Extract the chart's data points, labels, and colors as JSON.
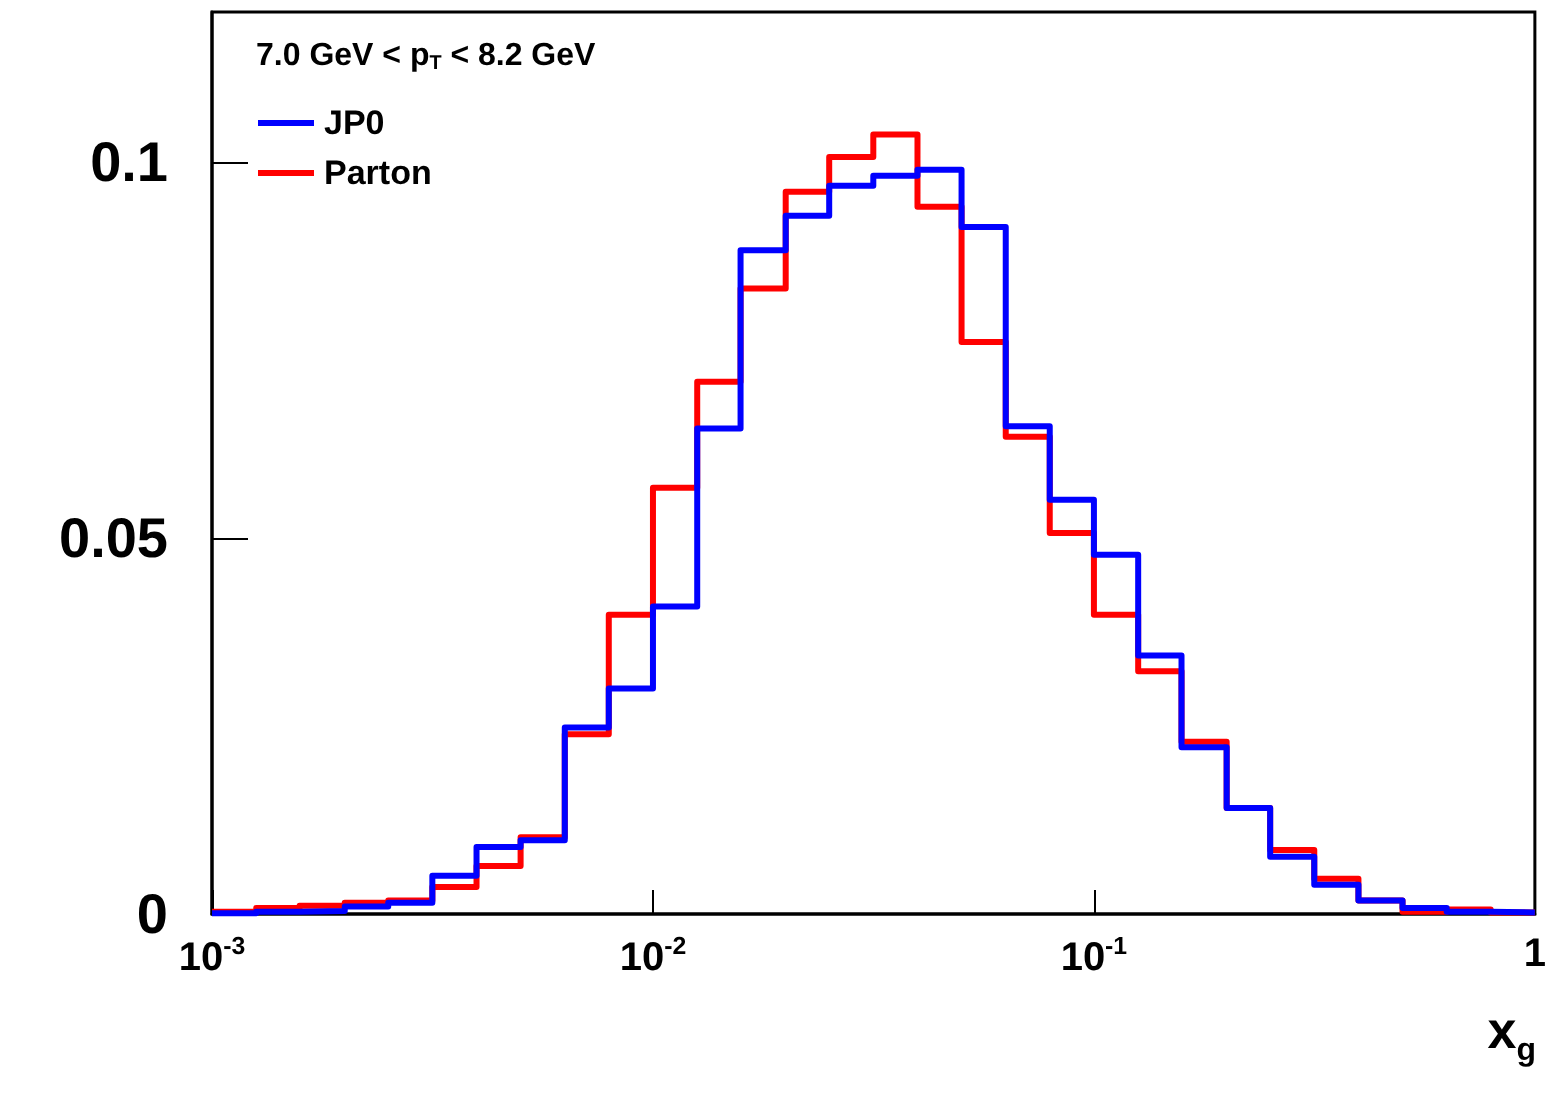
{
  "chart_data": {
    "type": "histogram",
    "xlabel": "x$_{g}$",
    "legend_title": "7.0 GeV < p$_{T}$ < 8.2 GeV",
    "log": "x",
    "legend": "top left",
    "bins": [
      0.001,
      0.00126,
      0.00158,
      0.002,
      0.00251,
      0.00316,
      0.00398,
      0.00501,
      0.00631,
      0.00794,
      0.01,
      0.0126,
      0.0158,
      0.02,
      0.0251,
      0.0316,
      0.0398,
      0.0501,
      0.0631,
      0.0794,
      0.1,
      0.126,
      0.158,
      0.2,
      0.251,
      0.316,
      0.398,
      0.501,
      0.631,
      0.794,
      1
    ],
    "series": [
      {
        "name": "JP0",
        "color": "#0000ff",
        "values": [
          0.0001,
          0.0003,
          0.0004,
          0.001,
          0.0015,
          0.0051,
          0.0089,
          0.0098,
          0.0248,
          0.03,
          0.0409,
          0.0646,
          0.0883,
          0.0929,
          0.0969,
          0.0982,
          0.099,
          0.0914,
          0.0649,
          0.0551,
          0.0478,
          0.0344,
          0.0222,
          0.0141,
          0.0076,
          0.0039,
          0.0018,
          0.0008,
          0.0003,
          0.0002
        ]
      },
      {
        "name": "Parton",
        "color": "#ff0000",
        "values": [
          0.0003,
          0.0008,
          0.0011,
          0.0015,
          0.0018,
          0.0036,
          0.0064,
          0.0102,
          0.0239,
          0.0398,
          0.0567,
          0.0708,
          0.0832,
          0.0961,
          0.1007,
          0.1037,
          0.0941,
          0.0761,
          0.0635,
          0.0507,
          0.0398,
          0.0323,
          0.0229,
          0.0141,
          0.0085,
          0.0047,
          0.0018,
          0.0003,
          0.0006,
          0.0002
        ]
      }
    ],
    "xlim": [
      0.001,
      1
    ],
    "xticks": [
      {
        "value": 0.001,
        "label": "10$^{-3}$"
      },
      {
        "value": 0.01,
        "label": "10$^{-2}$"
      },
      {
        "value": 0.1,
        "label": "10$^{-1}$"
      },
      {
        "value": 1,
        "label": "1"
      }
    ],
    "ylim": [
      0,
      0.12
    ],
    "yticks": [
      0,
      0.05,
      0.1
    ]
  }
}
